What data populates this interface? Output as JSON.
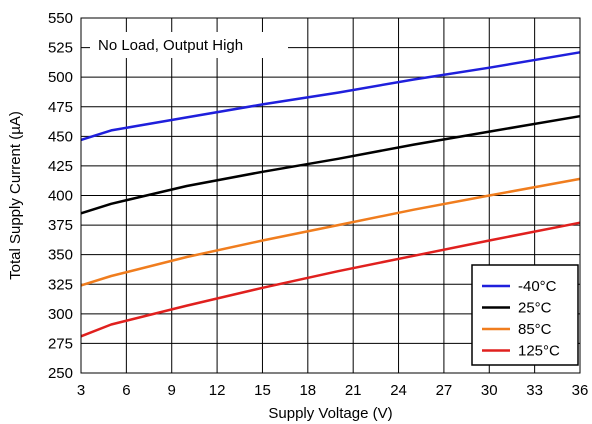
{
  "chart_data": {
    "type": "line",
    "title": "",
    "annotation": "No Load, Output High",
    "xlabel": "Supply Voltage (V)",
    "ylabel": "Total Supply Current (µA)",
    "xlim": [
      3,
      36
    ],
    "ylim": [
      250,
      550
    ],
    "x_ticks": [
      3,
      6,
      9,
      12,
      15,
      18,
      21,
      24,
      27,
      30,
      33,
      36
    ],
    "y_ticks": [
      250,
      275,
      300,
      325,
      350,
      375,
      400,
      425,
      450,
      475,
      500,
      525,
      550
    ],
    "grid": true,
    "legend_position": "bottom-right",
    "series": [
      {
        "name": "-40°C",
        "color": "#1f1fdc",
        "x": [
          3,
          5,
          10,
          15,
          20,
          25,
          30,
          36
        ],
        "y": [
          447,
          455,
          466,
          477,
          487,
          498,
          508,
          521
        ]
      },
      {
        "name": "25°C",
        "color": "#000000",
        "x": [
          3,
          5,
          10,
          15,
          20,
          25,
          30,
          36
        ],
        "y": [
          385,
          393,
          408,
          420,
          431,
          443,
          454,
          467
        ]
      },
      {
        "name": "85°C",
        "color": "#f07d1e",
        "x": [
          3,
          5,
          10,
          15,
          20,
          25,
          30,
          36
        ],
        "y": [
          324,
          332,
          348,
          362,
          375,
          388,
          400,
          414
        ]
      },
      {
        "name": "125°C",
        "color": "#e0201e",
        "x": [
          3,
          5,
          10,
          15,
          20,
          25,
          30,
          36
        ],
        "y": [
          281,
          291,
          307,
          322,
          336,
          349,
          362,
          377
        ]
      }
    ]
  }
}
